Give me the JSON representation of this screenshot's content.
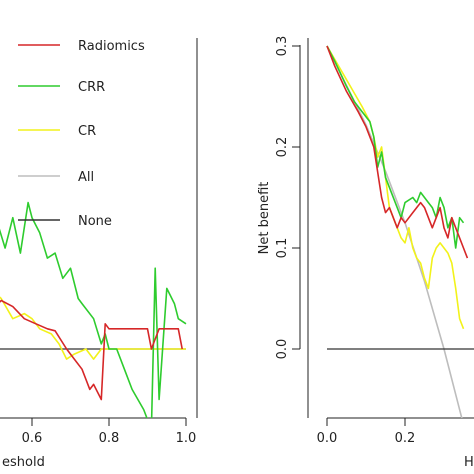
{
  "chart_data": [
    {
      "type": "line",
      "panel": "left",
      "xlabel": "eshold",
      "ylabel": "",
      "xlim": [
        0.45,
        1.0
      ],
      "ylim": [
        -0.08,
        0.3
      ],
      "x_ticks": [
        0.6,
        0.8,
        1.0
      ],
      "x_tick_labels": [
        "0.6",
        "0.8",
        "1.0"
      ],
      "legend": {
        "placement": "top-left",
        "entries": [
          {
            "name": "Radiomics",
            "color": "#d62728"
          },
          {
            "name": "CRR",
            "color": "#2ecc2e"
          },
          {
            "name": "CR",
            "color": "#f2f21a"
          },
          {
            "name": "All",
            "color": "#bdbdbd"
          },
          {
            "name": "None",
            "color": "#333333"
          }
        ]
      },
      "series": [
        {
          "name": "Radiomics",
          "color": "#d62728",
          "points": [
            [
              0.45,
              0.06
            ],
            [
              0.46,
              0.05
            ],
            [
              0.5,
              0.04
            ],
            [
              0.52,
              0.048
            ],
            [
              0.55,
              0.042
            ],
            [
              0.58,
              0.03
            ],
            [
              0.61,
              0.025
            ],
            [
              0.64,
              0.02
            ],
            [
              0.66,
              0.018
            ],
            [
              0.69,
              0.0
            ],
            [
              0.71,
              -0.01
            ],
            [
              0.73,
              -0.02
            ],
            [
              0.75,
              -0.04
            ],
            [
              0.76,
              -0.035
            ],
            [
              0.78,
              -0.05
            ],
            [
              0.79,
              0.025
            ],
            [
              0.8,
              0.02
            ],
            [
              0.82,
              0.02
            ],
            [
              0.9,
              0.02
            ],
            [
              0.91,
              0.0
            ],
            [
              0.93,
              0.02
            ],
            [
              0.98,
              0.02
            ],
            [
              0.99,
              0.0
            ]
          ]
        },
        {
          "name": "CRR",
          "color": "#2ecc2e",
          "points": [
            [
              0.45,
              0.135
            ],
            [
              0.46,
              0.12
            ],
            [
              0.48,
              0.135
            ],
            [
              0.5,
              0.11
            ],
            [
              0.51,
              0.125
            ],
            [
              0.53,
              0.1
            ],
            [
              0.55,
              0.13
            ],
            [
              0.57,
              0.095
            ],
            [
              0.59,
              0.145
            ],
            [
              0.6,
              0.13
            ],
            [
              0.62,
              0.115
            ],
            [
              0.64,
              0.09
            ],
            [
              0.66,
              0.095
            ],
            [
              0.68,
              0.07
            ],
            [
              0.7,
              0.08
            ],
            [
              0.72,
              0.05
            ],
            [
              0.73,
              0.045
            ],
            [
              0.76,
              0.03
            ],
            [
              0.78,
              0.005
            ],
            [
              0.79,
              0.015
            ],
            [
              0.8,
              0.0
            ],
            [
              0.82,
              0.0
            ],
            [
              0.84,
              -0.02
            ],
            [
              0.86,
              -0.04
            ],
            [
              0.89,
              -0.06
            ],
            [
              0.91,
              -0.08
            ],
            [
              0.92,
              0.08
            ],
            [
              0.93,
              -0.05
            ],
            [
              0.95,
              0.06
            ],
            [
              0.97,
              0.045
            ],
            [
              0.98,
              0.03
            ],
            [
              1.0,
              0.025
            ]
          ]
        },
        {
          "name": "CR",
          "color": "#f2f21a",
          "points": [
            [
              0.45,
              0.085
            ],
            [
              0.47,
              0.05
            ],
            [
              0.49,
              0.06
            ],
            [
              0.52,
              0.05
            ],
            [
              0.55,
              0.03
            ],
            [
              0.58,
              0.035
            ],
            [
              0.6,
              0.03
            ],
            [
              0.62,
              0.02
            ],
            [
              0.65,
              0.015
            ],
            [
              0.67,
              0.005
            ],
            [
              0.69,
              -0.01
            ],
            [
              0.71,
              -0.005
            ],
            [
              0.74,
              0.0
            ],
            [
              0.76,
              -0.01
            ],
            [
              0.78,
              0.0
            ],
            [
              0.8,
              0.0
            ],
            [
              0.95,
              0.0
            ],
            [
              1.0,
              0.0
            ]
          ]
        },
        {
          "name": "None",
          "color": "#333333",
          "points": [
            [
              0.45,
              0.0
            ],
            [
              1.0,
              0.0
            ]
          ]
        }
      ]
    },
    {
      "type": "line",
      "panel": "right",
      "xlabel": "Hi",
      "ylabel": "Net benefit",
      "xlim": [
        0.0,
        0.4
      ],
      "ylim": [
        -0.08,
        0.33
      ],
      "x_ticks": [
        0.0,
        0.2
      ],
      "x_tick_labels": [
        "0.0",
        "0.2"
      ],
      "y_ticks": [
        0.0,
        0.1,
        0.2,
        0.3
      ],
      "y_tick_labels": [
        "0.0",
        "0.1",
        "0.2",
        "0.3"
      ],
      "series": [
        {
          "name": "Radiomics",
          "color": "#d62728",
          "points": [
            [
              0.0,
              0.3
            ],
            [
              0.02,
              0.28
            ],
            [
              0.05,
              0.255
            ],
            [
              0.08,
              0.235
            ],
            [
              0.1,
              0.22
            ],
            [
              0.12,
              0.2
            ],
            [
              0.13,
              0.175
            ],
            [
              0.14,
              0.15
            ],
            [
              0.15,
              0.135
            ],
            [
              0.16,
              0.14
            ],
            [
              0.18,
              0.12
            ],
            [
              0.19,
              0.13
            ],
            [
              0.2,
              0.125
            ],
            [
              0.22,
              0.135
            ],
            [
              0.23,
              0.14
            ],
            [
              0.24,
              0.145
            ],
            [
              0.25,
              0.14
            ],
            [
              0.27,
              0.12
            ],
            [
              0.28,
              0.13
            ],
            [
              0.29,
              0.14
            ],
            [
              0.3,
              0.12
            ],
            [
              0.31,
              0.11
            ],
            [
              0.32,
              0.13
            ],
            [
              0.33,
              0.12
            ],
            [
              0.35,
              0.1
            ],
            [
              0.36,
              0.09
            ]
          ]
        },
        {
          "name": "CRR",
          "color": "#2ecc2e",
          "points": [
            [
              0.0,
              0.3
            ],
            [
              0.02,
              0.285
            ],
            [
              0.05,
              0.26
            ],
            [
              0.07,
              0.245
            ],
            [
              0.09,
              0.235
            ],
            [
              0.11,
              0.225
            ],
            [
              0.12,
              0.21
            ],
            [
              0.13,
              0.18
            ],
            [
              0.14,
              0.195
            ],
            [
              0.15,
              0.17
            ],
            [
              0.16,
              0.16
            ],
            [
              0.18,
              0.14
            ],
            [
              0.19,
              0.13
            ],
            [
              0.2,
              0.145
            ],
            [
              0.22,
              0.15
            ],
            [
              0.23,
              0.145
            ],
            [
              0.24,
              0.155
            ],
            [
              0.25,
              0.15
            ],
            [
              0.26,
              0.145
            ],
            [
              0.27,
              0.14
            ],
            [
              0.28,
              0.13
            ],
            [
              0.29,
              0.15
            ],
            [
              0.3,
              0.14
            ],
            [
              0.31,
              0.12
            ],
            [
              0.32,
              0.13
            ],
            [
              0.33,
              0.1
            ],
            [
              0.34,
              0.13
            ],
            [
              0.35,
              0.125
            ]
          ]
        },
        {
          "name": "CR",
          "color": "#f2f21a",
          "points": [
            [
              0.0,
              0.3
            ],
            [
              0.03,
              0.28
            ],
            [
              0.06,
              0.26
            ],
            [
              0.09,
              0.24
            ],
            [
              0.11,
              0.225
            ],
            [
              0.12,
              0.21
            ],
            [
              0.13,
              0.19
            ],
            [
              0.14,
              0.2
            ],
            [
              0.15,
              0.17
            ],
            [
              0.16,
              0.14
            ],
            [
              0.17,
              0.13
            ],
            [
              0.18,
              0.12
            ],
            [
              0.19,
              0.11
            ],
            [
              0.2,
              0.105
            ],
            [
              0.21,
              0.12
            ],
            [
              0.22,
              0.1
            ],
            [
              0.23,
              0.09
            ],
            [
              0.24,
              0.085
            ],
            [
              0.25,
              0.07
            ],
            [
              0.26,
              0.06
            ],
            [
              0.27,
              0.09
            ],
            [
              0.28,
              0.1
            ],
            [
              0.29,
              0.105
            ],
            [
              0.3,
              0.1
            ],
            [
              0.31,
              0.095
            ],
            [
              0.32,
              0.085
            ],
            [
              0.33,
              0.06
            ],
            [
              0.34,
              0.03
            ],
            [
              0.35,
              0.02
            ]
          ]
        },
        {
          "name": "All",
          "color": "#bdbdbd",
          "points": [
            [
              0.0,
              0.3
            ],
            [
              0.1,
              0.222
            ],
            [
              0.15,
              0.176
            ],
            [
              0.2,
              0.125
            ],
            [
              0.25,
              0.067
            ],
            [
              0.3,
              0.0
            ],
            [
              0.33,
              -0.045
            ],
            [
              0.36,
              -0.09
            ]
          ]
        },
        {
          "name": "None",
          "color": "#333333",
          "points": [
            [
              0.0,
              0.0
            ],
            [
              0.4,
              0.0
            ]
          ]
        }
      ]
    }
  ]
}
